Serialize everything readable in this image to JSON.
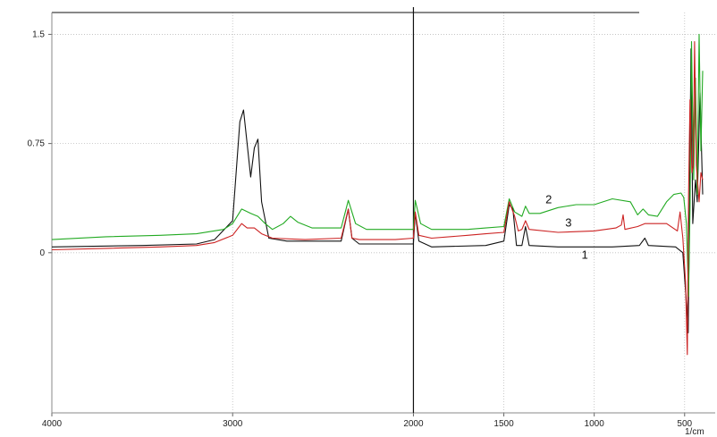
{
  "chart_data": {
    "type": "line",
    "title": "",
    "xlabel": "1/cm",
    "ylabel": "",
    "xlim": [
      4000,
      400
    ],
    "ylim": [
      -1.1,
      1.65
    ],
    "x_reversed": true,
    "grid": true,
    "x_ticks": [
      {
        "value": 4000,
        "label": "4000"
      },
      {
        "value": 3000,
        "label": "3000"
      },
      {
        "value": 2000,
        "label": "2000"
      },
      {
        "value": 1500,
        "label": "1500"
      },
      {
        "value": 1000,
        "label": "1000"
      },
      {
        "value": 500,
        "label": "500"
      }
    ],
    "y_ticks": [
      {
        "value": 1.5,
        "label": "1.5"
      },
      {
        "value": 0.75,
        "label": "0.75"
      },
      {
        "value": 0,
        "label": "0"
      }
    ],
    "series": [
      {
        "name": "1",
        "color": "#111111",
        "label_at": [
          1070,
          -0.04
        ],
        "points": [
          [
            4000,
            0.04
          ],
          [
            3500,
            0.05
          ],
          [
            3200,
            0.06
          ],
          [
            3100,
            0.09
          ],
          [
            3000,
            0.22
          ],
          [
            2960,
            0.9
          ],
          [
            2940,
            0.98
          ],
          [
            2920,
            0.75
          ],
          [
            2900,
            0.52
          ],
          [
            2880,
            0.72
          ],
          [
            2860,
            0.78
          ],
          [
            2840,
            0.35
          ],
          [
            2800,
            0.1
          ],
          [
            2700,
            0.08
          ],
          [
            2400,
            0.08
          ],
          [
            2360,
            0.3
          ],
          [
            2340,
            0.1
          ],
          [
            2300,
            0.06
          ],
          [
            2100,
            0.06
          ],
          [
            2000,
            0.06
          ],
          [
            1990,
            0.27
          ],
          [
            1970,
            0.08
          ],
          [
            1900,
            0.04
          ],
          [
            1600,
            0.05
          ],
          [
            1500,
            0.08
          ],
          [
            1470,
            0.33
          ],
          [
            1450,
            0.3
          ],
          [
            1430,
            0.05
          ],
          [
            1400,
            0.05
          ],
          [
            1380,
            0.18
          ],
          [
            1360,
            0.05
          ],
          [
            1200,
            0.04
          ],
          [
            900,
            0.04
          ],
          [
            750,
            0.05
          ],
          [
            720,
            0.1
          ],
          [
            700,
            0.05
          ],
          [
            550,
            0.04
          ],
          [
            510,
            0.0
          ],
          [
            490,
            -0.35
          ],
          [
            480,
            -0.55
          ],
          [
            472,
            0.45
          ],
          [
            465,
            1.4
          ],
          [
            455,
            0.2
          ],
          [
            440,
            0.5
          ],
          [
            430,
            0.35
          ],
          [
            415,
            1.1
          ],
          [
            400,
            0.4
          ]
        ]
      },
      {
        "name": "2",
        "color": "#22aa22",
        "label_at": [
          1270,
          0.34
        ],
        "points": [
          [
            4000,
            0.09
          ],
          [
            3700,
            0.11
          ],
          [
            3400,
            0.12
          ],
          [
            3200,
            0.13
          ],
          [
            3050,
            0.16
          ],
          [
            3000,
            0.2
          ],
          [
            2950,
            0.3
          ],
          [
            2900,
            0.27
          ],
          [
            2860,
            0.25
          ],
          [
            2820,
            0.2
          ],
          [
            2780,
            0.16
          ],
          [
            2720,
            0.2
          ],
          [
            2680,
            0.25
          ],
          [
            2640,
            0.21
          ],
          [
            2560,
            0.17
          ],
          [
            2400,
            0.17
          ],
          [
            2360,
            0.36
          ],
          [
            2320,
            0.2
          ],
          [
            2260,
            0.16
          ],
          [
            2100,
            0.16
          ],
          [
            2000,
            0.16
          ],
          [
            1990,
            0.36
          ],
          [
            1960,
            0.2
          ],
          [
            1900,
            0.16
          ],
          [
            1700,
            0.16
          ],
          [
            1600,
            0.17
          ],
          [
            1500,
            0.18
          ],
          [
            1470,
            0.37
          ],
          [
            1440,
            0.28
          ],
          [
            1400,
            0.25
          ],
          [
            1380,
            0.32
          ],
          [
            1360,
            0.27
          ],
          [
            1300,
            0.27
          ],
          [
            1200,
            0.31
          ],
          [
            1100,
            0.33
          ],
          [
            1000,
            0.33
          ],
          [
            900,
            0.37
          ],
          [
            800,
            0.35
          ],
          [
            760,
            0.26
          ],
          [
            730,
            0.3
          ],
          [
            700,
            0.26
          ],
          [
            650,
            0.25
          ],
          [
            600,
            0.35
          ],
          [
            560,
            0.4
          ],
          [
            520,
            0.41
          ],
          [
            505,
            0.38
          ],
          [
            490,
            0.2
          ],
          [
            478,
            -0.3
          ],
          [
            470,
            0.3
          ],
          [
            462,
            1.45
          ],
          [
            450,
            0.5
          ],
          [
            440,
            1.2
          ],
          [
            430,
            0.4
          ],
          [
            420,
            1.5
          ],
          [
            410,
            0.7
          ],
          [
            400,
            1.25
          ]
        ]
      },
      {
        "name": "3",
        "color": "#cc2222",
        "label_at": [
          1160,
          0.18
        ],
        "points": [
          [
            4000,
            0.02
          ],
          [
            3700,
            0.03
          ],
          [
            3400,
            0.04
          ],
          [
            3200,
            0.05
          ],
          [
            3100,
            0.07
          ],
          [
            3000,
            0.12
          ],
          [
            2950,
            0.2
          ],
          [
            2920,
            0.17
          ],
          [
            2880,
            0.17
          ],
          [
            2840,
            0.13
          ],
          [
            2780,
            0.1
          ],
          [
            2600,
            0.09
          ],
          [
            2400,
            0.1
          ],
          [
            2360,
            0.3
          ],
          [
            2340,
            0.1
          ],
          [
            2300,
            0.09
          ],
          [
            2100,
            0.09
          ],
          [
            2000,
            0.1
          ],
          [
            1990,
            0.28
          ],
          [
            1970,
            0.12
          ],
          [
            1900,
            0.1
          ],
          [
            1700,
            0.12
          ],
          [
            1600,
            0.13
          ],
          [
            1500,
            0.14
          ],
          [
            1470,
            0.35
          ],
          [
            1440,
            0.25
          ],
          [
            1420,
            0.15
          ],
          [
            1400,
            0.16
          ],
          [
            1380,
            0.22
          ],
          [
            1360,
            0.16
          ],
          [
            1200,
            0.14
          ],
          [
            1000,
            0.15
          ],
          [
            880,
            0.17
          ],
          [
            850,
            0.19
          ],
          [
            840,
            0.26
          ],
          [
            830,
            0.16
          ],
          [
            760,
            0.18
          ],
          [
            720,
            0.2
          ],
          [
            600,
            0.2
          ],
          [
            540,
            0.15
          ],
          [
            525,
            0.28
          ],
          [
            510,
            0.1
          ],
          [
            495,
            -0.2
          ],
          [
            485,
            -0.7
          ],
          [
            478,
            0.4
          ],
          [
            470,
            1.05
          ],
          [
            460,
            0.55
          ],
          [
            452,
            0.6
          ],
          [
            445,
            1.45
          ],
          [
            435,
            0.6
          ],
          [
            420,
            0.35
          ],
          [
            410,
            0.55
          ],
          [
            400,
            0.5
          ]
        ]
      }
    ],
    "vertical_marker": {
      "x": 2000,
      "color": "#111111"
    }
  }
}
